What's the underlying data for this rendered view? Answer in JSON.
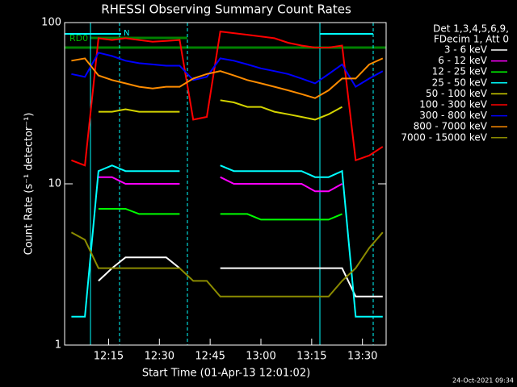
{
  "chart_data": {
    "type": "line",
    "title": "RHESSI Observing Summary Count Rates",
    "x_label": "Start Time (01-Apr-13 12:01:02)",
    "y_label": "Count Rate (s⁻¹ detector⁻¹)",
    "legend_header": [
      "Det 1,3,4,5,6,9,",
      "FDecim 1, Att 0"
    ],
    "annotations": [
      "RD0",
      "N"
    ],
    "timestamp": "24-Oct-2021 09:34",
    "log_y": true,
    "xlim": [
      "12:02",
      "13:37"
    ],
    "xticks": [
      "12:15",
      "12:30",
      "12:45",
      "13:00",
      "13:15",
      "13:30"
    ],
    "ylim": [
      1,
      100
    ],
    "yticks": [
      1,
      10,
      100
    ],
    "x": [
      "12:04",
      "12:08",
      "12:12",
      "12:16",
      "12:20",
      "12:24",
      "12:28",
      "12:32",
      "12:36",
      "12:40",
      "12:44",
      "12:48",
      "12:52",
      "12:56",
      "13:00",
      "13:04",
      "13:08",
      "13:12",
      "13:16",
      "13:20",
      "13:24",
      "13:28",
      "13:32",
      "13:36"
    ],
    "series": [
      {
        "name": "3 - 6 keV",
        "color": "#ffffff",
        "values": [
          null,
          null,
          2.5,
          3,
          3.5,
          3.5,
          3.5,
          3.5,
          3,
          null,
          null,
          3,
          3,
          3,
          3,
          3,
          3,
          3,
          3,
          3,
          3,
          2,
          2,
          2
        ]
      },
      {
        "name": "6 - 12 keV",
        "color": "#ff00ff",
        "values": [
          null,
          null,
          11,
          11,
          10,
          10,
          10,
          10,
          10,
          null,
          null,
          11,
          10,
          10,
          10,
          10,
          10,
          10,
          9,
          9,
          10,
          null,
          null,
          null
        ]
      },
      {
        "name": "12 - 25 keV",
        "color": "#00ff00",
        "values": [
          null,
          null,
          7,
          7,
          7,
          6.5,
          6.5,
          6.5,
          6.5,
          null,
          null,
          6.5,
          6.5,
          6.5,
          6,
          6,
          6,
          6,
          6,
          6,
          6.5,
          null,
          null,
          null
        ]
      },
      {
        "name": "25 - 50 keV",
        "color": "#00ffff",
        "values": [
          1.5,
          1.5,
          12,
          13,
          12,
          12,
          12,
          12,
          12,
          null,
          null,
          13,
          12,
          12,
          12,
          12,
          12,
          12,
          11,
          11,
          12,
          1.5,
          1.5,
          1.5
        ]
      },
      {
        "name": "50 - 100 keV",
        "color": "#d4d400",
        "values": [
          null,
          null,
          28,
          28,
          29,
          28,
          28,
          28,
          28,
          null,
          null,
          33,
          32,
          30,
          30,
          28,
          27,
          26,
          25,
          27,
          30,
          null,
          null,
          null
        ]
      },
      {
        "name": "100 - 300 keV",
        "color": "#ff0000",
        "values": [
          14,
          13,
          80,
          78,
          80,
          78,
          76,
          77,
          78,
          25,
          26,
          88,
          86,
          84,
          82,
          80,
          75,
          72,
          70,
          70,
          72,
          14,
          15,
          17
        ]
      },
      {
        "name": "300 - 800 keV",
        "color": "#0000ff",
        "values": [
          48,
          46,
          65,
          62,
          58,
          56,
          55,
          54,
          54,
          44,
          46,
          60,
          58,
          55,
          52,
          50,
          48,
          45,
          42,
          48,
          55,
          40,
          45,
          50
        ]
      },
      {
        "name": "800 - 7000 keV",
        "color": "#ff8c00",
        "values": [
          58,
          60,
          47,
          44,
          42,
          40,
          39,
          40,
          40,
          45,
          48,
          50,
          47,
          44,
          42,
          40,
          38,
          36,
          34,
          38,
          45,
          45,
          55,
          60
        ]
      },
      {
        "name": "7000 - 15000 keV",
        "color": "#8b8b00",
        "values": [
          5,
          4.5,
          3,
          3,
          3,
          3,
          3,
          3,
          3,
          2.5,
          2.5,
          2,
          2,
          2,
          2,
          2,
          2,
          2,
          2,
          2,
          2.5,
          3,
          4,
          5
        ]
      }
    ]
  }
}
